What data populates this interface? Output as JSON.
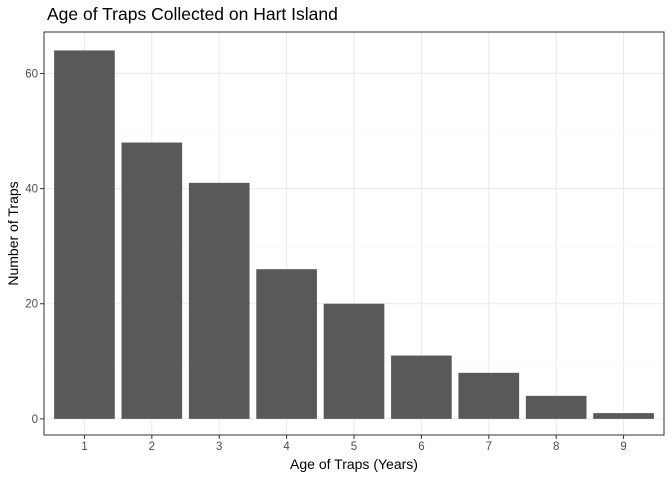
{
  "chart_data": {
    "type": "bar",
    "title": "Age of Traps Collected on Hart Island",
    "xlabel": "Age of Traps (Years)",
    "ylabel": "Number of Traps",
    "categories": [
      "1",
      "2",
      "3",
      "4",
      "5",
      "6",
      "7",
      "8",
      "9"
    ],
    "values": [
      64,
      48,
      41,
      26,
      20,
      11,
      8,
      4,
      1
    ],
    "y_ticks": [
      0,
      20,
      40,
      60
    ],
    "ylim": [
      -2.8,
      67.2
    ],
    "grid": true,
    "legend": "none",
    "colors": {
      "bar": "#595959",
      "grid": "#ebebeb",
      "panel_border": "#333333",
      "text": "#000000",
      "tick_text": "#4d4d4d"
    }
  }
}
